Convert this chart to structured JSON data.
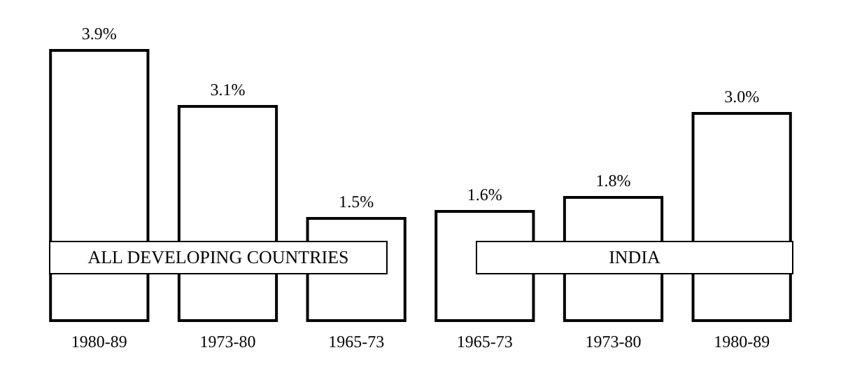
{
  "chart_data": {
    "type": "bar",
    "categories": [
      "1980-89",
      "1973-80",
      "1965-73",
      "1965-73",
      "1973-80",
      "1980-89"
    ],
    "values": [
      3.9,
      3.1,
      1.5,
      1.6,
      1.8,
      3.0
    ],
    "value_labels": [
      "3.9%",
      "3.1%",
      "1.5%",
      "1.6%",
      "1.8%",
      "3.0%"
    ],
    "color": "#ffffff",
    "annotations": [
      "ALL DEVELOPING COUNTRIES",
      "INDIA"
    ]
  }
}
